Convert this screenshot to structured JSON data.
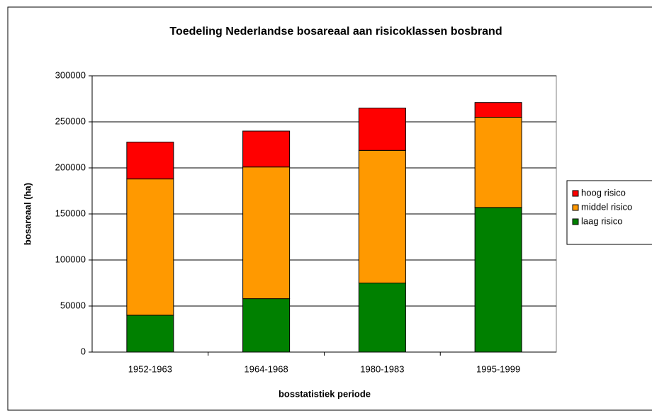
{
  "chart_data": {
    "type": "stacked_bar",
    "title": "Toedeling Nederlandse bosareaal aan risicoklassen bosbrand",
    "xlabel": "bosstatistiek periode",
    "ylabel": "bosareaal (ha)",
    "categories": [
      "1952-1963",
      "1964-1968",
      "1980-1983",
      "1995-1999"
    ],
    "series": [
      {
        "name": "laag risico",
        "color": "#008000",
        "values": [
          40000,
          58000,
          75000,
          157000
        ]
      },
      {
        "name": "middel risico",
        "color": "#ff9900",
        "values": [
          148000,
          143000,
          144000,
          98000
        ]
      },
      {
        "name": "hoog risico",
        "color": "#ff0000",
        "values": [
          40000,
          39000,
          46000,
          16000
        ]
      }
    ],
    "ylim": [
      0,
      300000
    ],
    "yticks": [
      0,
      50000,
      100000,
      150000,
      200000,
      250000,
      300000
    ],
    "grid": true,
    "legend": "right"
  }
}
